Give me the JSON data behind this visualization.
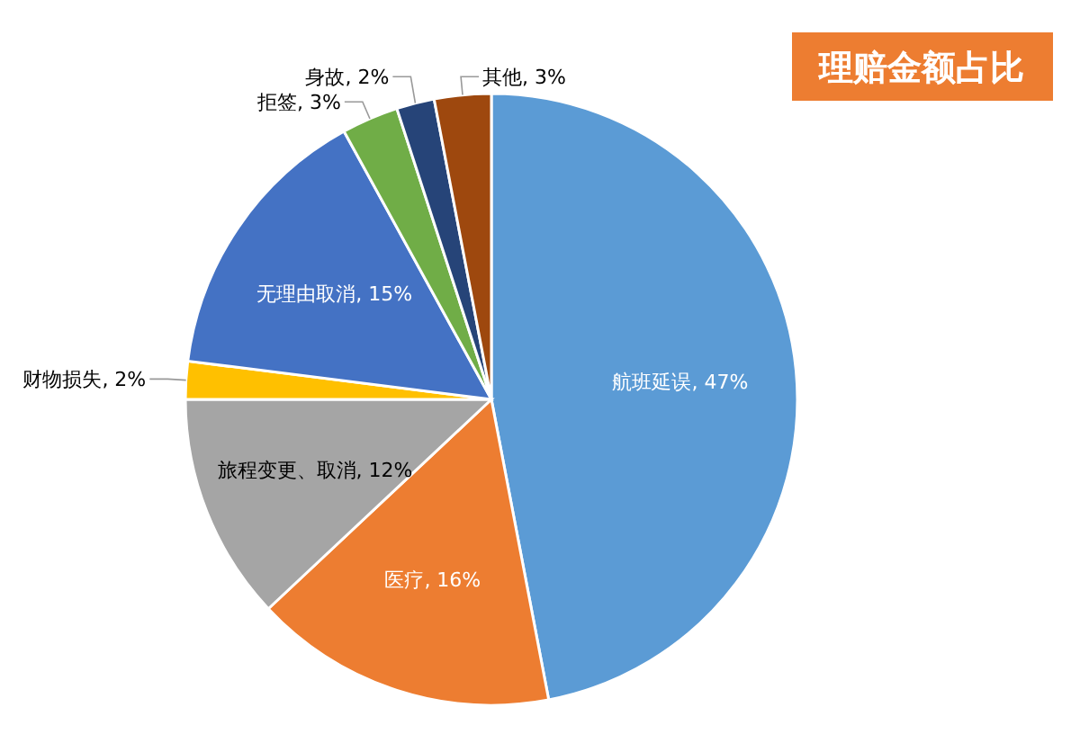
{
  "chart_data": {
    "type": "pie",
    "title": "理赔金额占比",
    "categories": [
      "航班延误",
      "医疗",
      "旅程变更、取消",
      "财物损失",
      "无理由取消",
      "拒签",
      "身故",
      "其他"
    ],
    "values": [
      47,
      16,
      12,
      2,
      15,
      3,
      2,
      3
    ],
    "value_labels": [
      "47%",
      "16%",
      "12%",
      "2%",
      "15%",
      "3%",
      "2%",
      "3%"
    ],
    "colors": [
      "#5b9bd5",
      "#ed7d31",
      "#a5a5a5",
      "#ffc000",
      "#4472c4",
      "#70ad47",
      "#264478",
      "#9e480e"
    ],
    "legend": false
  }
}
